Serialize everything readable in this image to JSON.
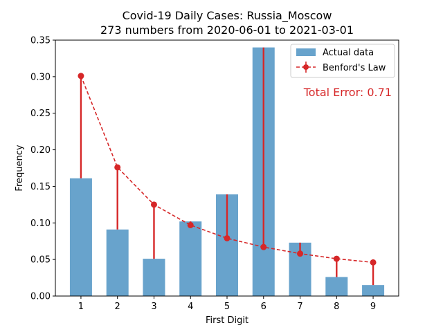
{
  "chart_data": {
    "type": "bar",
    "title": "Covid-19 Daily Cases: Russia_Moscow",
    "subtitle": "273 numbers from 2020-06-01 to 2021-03-01",
    "xlabel": "First Digit",
    "ylabel": "Frequency",
    "categories": [
      "1",
      "2",
      "3",
      "4",
      "5",
      "6",
      "7",
      "8",
      "9"
    ],
    "ylim": [
      0,
      0.35
    ],
    "yticks": [
      "0.00",
      "0.05",
      "0.10",
      "0.15",
      "0.20",
      "0.25",
      "0.30",
      "0.35"
    ],
    "grid": false,
    "legend_position": "top-right",
    "annotation": "Total Error: 0.71",
    "series": [
      {
        "name": "Actual data",
        "kind": "bar",
        "color": "#5b9bc8",
        "values": [
          0.161,
          0.091,
          0.051,
          0.102,
          0.139,
          0.34,
          0.073,
          0.026,
          0.015
        ]
      },
      {
        "name": "Benford's Law",
        "kind": "line",
        "color": "#d62728",
        "values": [
          0.301,
          0.176,
          0.125,
          0.097,
          0.079,
          0.067,
          0.058,
          0.051,
          0.046
        ]
      }
    ]
  }
}
